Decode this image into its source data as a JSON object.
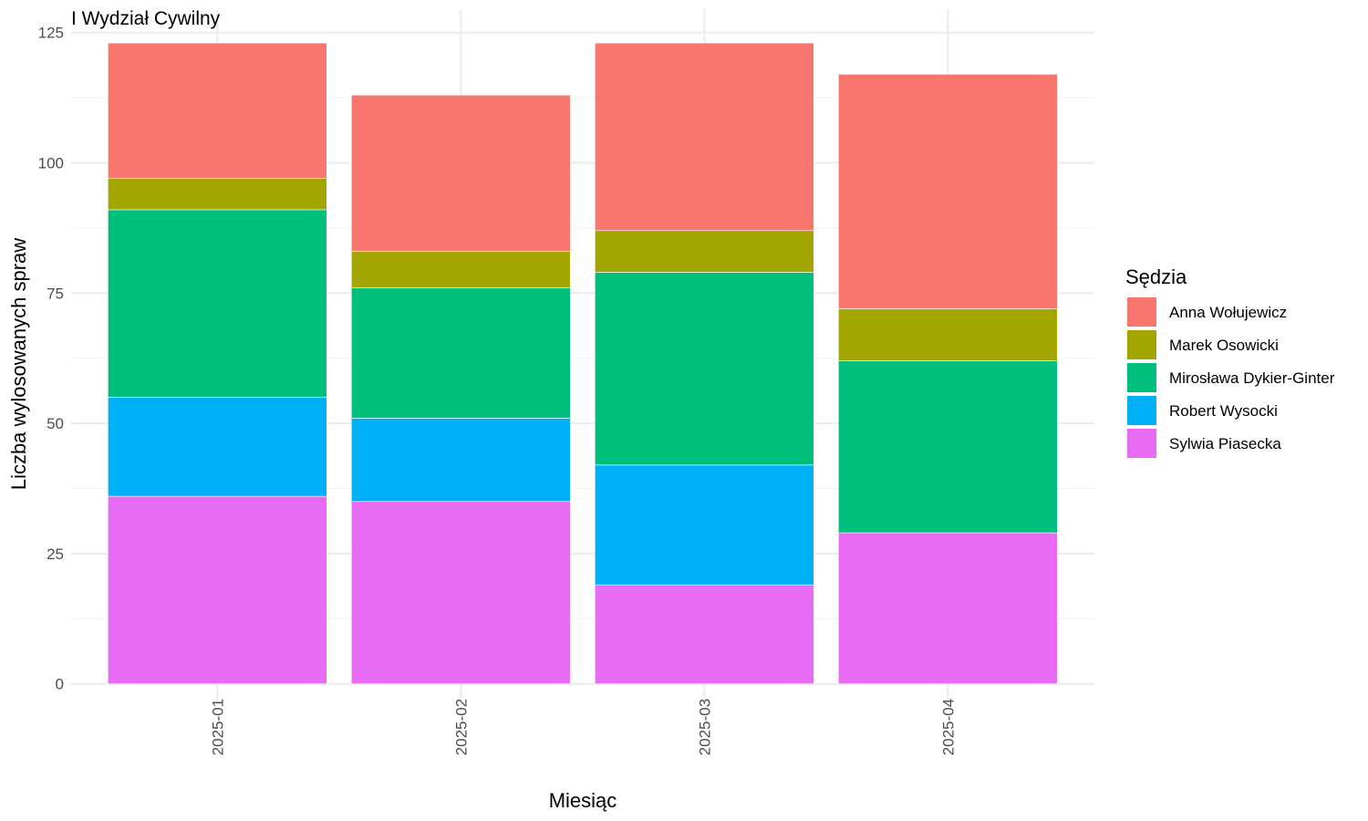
{
  "chart_data": {
    "type": "bar",
    "stacked": true,
    "title": "I Wydział Cywilny",
    "xlabel": "Miesiąc",
    "ylabel": "Liczba wylosowanych spraw",
    "ylim": [
      0,
      125
    ],
    "yticks": [
      0,
      25,
      50,
      75,
      100,
      125
    ],
    "categories": [
      "2025-01",
      "2025-02",
      "2025-03",
      "2025-04"
    ],
    "legend": {
      "title": "Sędzia",
      "position": "right"
    },
    "grid": true,
    "series": [
      {
        "name": "Anna Wołujewicz",
        "color": "#F8766D",
        "values": [
          26,
          30,
          36,
          45
        ]
      },
      {
        "name": "Marek Osowicki",
        "color": "#A3A500",
        "values": [
          6,
          7,
          8,
          10
        ]
      },
      {
        "name": "Mirosława Dykier-Ginter",
        "color": "#00BF7D",
        "values": [
          36,
          25,
          37,
          33
        ]
      },
      {
        "name": "Robert Wysocki",
        "color": "#00B0F6",
        "values": [
          19,
          16,
          23,
          0
        ]
      },
      {
        "name": "Sylwia Piasecka",
        "color": "#E76BF3",
        "values": [
          36,
          35,
          19,
          29
        ]
      }
    ]
  }
}
